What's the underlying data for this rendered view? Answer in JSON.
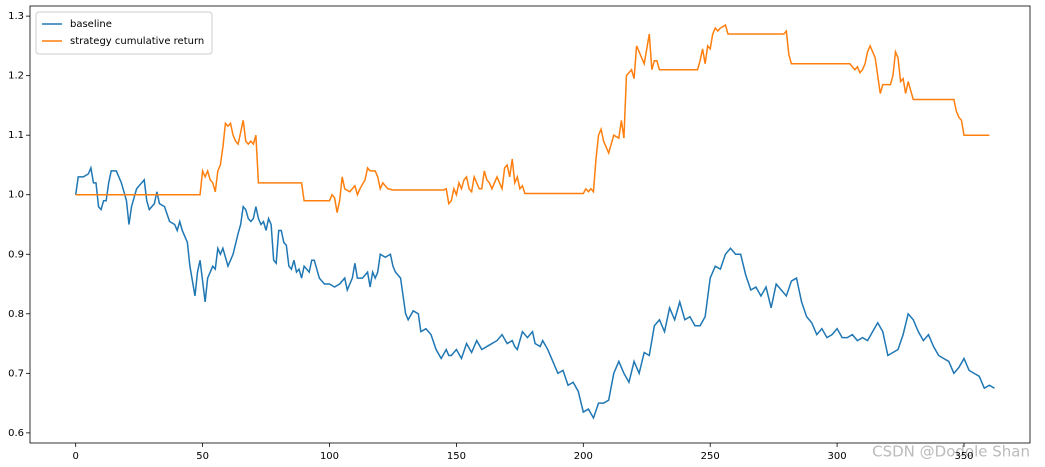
{
  "chart_data": {
    "type": "line",
    "xlim": [
      -18,
      376
    ],
    "ylim": [
      0.583,
      1.317
    ],
    "xticks": [
      0,
      50,
      100,
      150,
      200,
      250,
      300,
      350
    ],
    "yticks": [
      0.6,
      0.7,
      0.8,
      0.9,
      {
        "value": 1,
        "label": "1.0"
      },
      1.1,
      1.2,
      1.3
    ],
    "legend": "upper left",
    "watermark": "CSDN @Dodole Shan",
    "series": [
      {
        "name": "baseline",
        "color": "#1f77b4",
        "x": [
          0,
          1,
          3,
          5,
          6,
          7,
          8,
          9,
          10,
          11,
          12,
          13,
          14,
          16,
          18,
          20,
          21,
          22,
          24,
          26,
          27,
          28,
          29,
          31,
          32,
          33,
          35,
          37,
          39,
          40,
          41,
          42,
          44,
          45,
          47,
          48,
          49,
          51,
          52,
          54,
          55,
          56,
          57,
          58,
          60,
          62,
          64,
          65,
          66,
          67,
          68,
          69,
          70,
          71,
          72,
          73,
          74,
          75,
          76,
          77,
          78,
          79,
          80,
          81,
          82,
          83,
          84,
          85,
          86,
          87,
          88,
          89,
          90,
          92,
          93,
          94,
          96,
          98,
          100,
          102,
          104,
          106,
          107,
          109,
          110,
          111,
          113,
          115,
          116,
          117,
          118,
          119,
          120,
          122,
          124,
          125,
          126,
          128,
          130,
          131,
          133,
          135,
          136,
          138,
          140,
          142,
          144,
          146,
          147,
          148,
          150,
          152,
          154,
          156,
          158,
          160,
          162,
          164,
          166,
          168,
          170,
          172,
          173,
          174,
          176,
          178,
          180,
          181,
          183,
          184,
          186,
          188,
          190,
          192,
          194,
          196,
          198,
          200,
          202,
          204,
          206,
          208,
          210,
          212,
          214,
          216,
          218,
          220,
          222,
          224,
          226,
          228,
          230,
          232,
          234,
          236,
          238,
          240,
          242,
          244,
          246,
          248,
          250,
          252,
          254,
          256,
          258,
          260,
          262,
          264,
          266,
          268,
          270,
          272,
          274,
          276,
          278,
          280,
          282,
          284,
          286,
          288,
          290,
          292,
          294,
          296,
          298,
          300,
          302,
          304,
          306,
          308,
          310,
          312,
          314,
          316,
          318,
          320,
          322,
          324,
          326,
          328,
          330,
          332,
          334,
          336,
          338,
          340,
          342,
          344,
          346,
          348,
          350,
          352,
          354,
          356,
          358,
          360,
          362
        ],
        "values": [
          1.0,
          1.03,
          1.03,
          1.035,
          1.045,
          1.02,
          1.02,
          0.98,
          0.975,
          0.99,
          0.99,
          1.02,
          1.04,
          1.04,
          1.02,
          0.99,
          0.95,
          0.98,
          1.01,
          1.02,
          1.025,
          0.99,
          0.975,
          0.985,
          1.005,
          0.985,
          0.98,
          0.955,
          0.95,
          0.94,
          0.955,
          0.94,
          0.92,
          0.88,
          0.83,
          0.87,
          0.89,
          0.82,
          0.86,
          0.88,
          0.875,
          0.91,
          0.9,
          0.91,
          0.88,
          0.9,
          0.935,
          0.95,
          0.98,
          0.975,
          0.96,
          0.955,
          0.96,
          0.98,
          0.96,
          0.95,
          0.955,
          0.94,
          0.96,
          0.95,
          0.89,
          0.885,
          0.94,
          0.94,
          0.92,
          0.915,
          0.88,
          0.875,
          0.89,
          0.87,
          0.875,
          0.86,
          0.88,
          0.87,
          0.89,
          0.89,
          0.86,
          0.85,
          0.85,
          0.845,
          0.85,
          0.86,
          0.84,
          0.86,
          0.885,
          0.86,
          0.86,
          0.87,
          0.845,
          0.87,
          0.86,
          0.87,
          0.9,
          0.895,
          0.9,
          0.88,
          0.87,
          0.86,
          0.8,
          0.79,
          0.805,
          0.8,
          0.77,
          0.775,
          0.765,
          0.74,
          0.725,
          0.74,
          0.73,
          0.73,
          0.74,
          0.725,
          0.75,
          0.735,
          0.755,
          0.74,
          0.745,
          0.75,
          0.755,
          0.765,
          0.75,
          0.755,
          0.745,
          0.74,
          0.77,
          0.76,
          0.77,
          0.75,
          0.745,
          0.755,
          0.74,
          0.72,
          0.7,
          0.705,
          0.68,
          0.685,
          0.67,
          0.635,
          0.64,
          0.625,
          0.65,
          0.65,
          0.655,
          0.7,
          0.72,
          0.7,
          0.685,
          0.72,
          0.7,
          0.735,
          0.73,
          0.78,
          0.79,
          0.77,
          0.81,
          0.79,
          0.82,
          0.79,
          0.795,
          0.78,
          0.78,
          0.795,
          0.86,
          0.88,
          0.875,
          0.9,
          0.91,
          0.9,
          0.9,
          0.865,
          0.84,
          0.845,
          0.83,
          0.845,
          0.81,
          0.85,
          0.84,
          0.83,
          0.855,
          0.86,
          0.82,
          0.795,
          0.785,
          0.765,
          0.775,
          0.76,
          0.765,
          0.775,
          0.76,
          0.76,
          0.765,
          0.755,
          0.76,
          0.755,
          0.77,
          0.785,
          0.77,
          0.73,
          0.735,
          0.74,
          0.765,
          0.8,
          0.79,
          0.77,
          0.755,
          0.765,
          0.745,
          0.73,
          0.725,
          0.72,
          0.7,
          0.71,
          0.725,
          0.705,
          0.7,
          0.695,
          0.675,
          0.68,
          0.675
        ]
      },
      {
        "name": "strategy cumulative return",
        "color": "#ff7f0e",
        "x": [
          0,
          49,
          50,
          51,
          52,
          53,
          54,
          55,
          56,
          57,
          58,
          59,
          60,
          61,
          62,
          63,
          64,
          65,
          66,
          67,
          68,
          69,
          70,
          71,
          72,
          89,
          90,
          100,
          101,
          102,
          103,
          104,
          105,
          106,
          108,
          110,
          111,
          112,
          114,
          115,
          116,
          118,
          119,
          120,
          121,
          122,
          123,
          125,
          145,
          146,
          147,
          148,
          149,
          150,
          151,
          152,
          153,
          154,
          155,
          156,
          157,
          158,
          159,
          160,
          161,
          162,
          163,
          164,
          165,
          166,
          167,
          168,
          169,
          170,
          171,
          172,
          173,
          174,
          175,
          176,
          177,
          200,
          201,
          202,
          203,
          204,
          205,
          206,
          207,
          208,
          210,
          212,
          214,
          215,
          216,
          217,
          219,
          220,
          221,
          223,
          224,
          225,
          226,
          227,
          228,
          229,
          230,
          245,
          246,
          247,
          248,
          249,
          250,
          251,
          252,
          253,
          254,
          256,
          257,
          279,
          280,
          281,
          282,
          305,
          306,
          307,
          308,
          309,
          310,
          311,
          312,
          313,
          314,
          315,
          316,
          317,
          318,
          321,
          322,
          323,
          324,
          325,
          326,
          327,
          328,
          329,
          330,
          346,
          347,
          348,
          349,
          350,
          360
        ],
        "values": [
          1.0,
          1.0,
          1.04,
          1.03,
          1.04,
          1.025,
          1.02,
          1.005,
          1.04,
          1.05,
          1.08,
          1.12,
          1.115,
          1.12,
          1.1,
          1.09,
          1.085,
          1.105,
          1.125,
          1.09,
          1.085,
          1.09,
          1.085,
          1.1,
          1.02,
          1.02,
          0.99,
          0.99,
          1.0,
          0.995,
          0.97,
          0.99,
          1.03,
          1.01,
          1.005,
          1.015,
          1.0,
          1.01,
          1.025,
          1.045,
          1.04,
          1.04,
          1.03,
          1.01,
          1.02,
          1.015,
          1.01,
          1.008,
          1.008,
          1.01,
          0.985,
          0.99,
          1.01,
          1.0,
          1.02,
          1.01,
          1.025,
          1.03,
          1.01,
          1.005,
          1.03,
          1.02,
          1.01,
          1.01,
          1.04,
          1.025,
          1.02,
          1.01,
          1.02,
          1.03,
          1.02,
          1.01,
          1.045,
          1.05,
          1.03,
          1.06,
          1.02,
          1.03,
          1.01,
          1.015,
          1.002,
          1.002,
          1.01,
          1.005,
          1.01,
          1.005,
          1.06,
          1.1,
          1.11,
          1.09,
          1.07,
          1.1,
          1.095,
          1.125,
          1.095,
          1.2,
          1.21,
          1.195,
          1.25,
          1.23,
          1.22,
          1.245,
          1.27,
          1.21,
          1.225,
          1.225,
          1.21,
          1.21,
          1.225,
          1.245,
          1.22,
          1.25,
          1.245,
          1.27,
          1.28,
          1.275,
          1.28,
          1.285,
          1.27,
          1.27,
          1.275,
          1.235,
          1.22,
          1.22,
          1.215,
          1.21,
          1.215,
          1.205,
          1.21,
          1.22,
          1.24,
          1.25,
          1.24,
          1.23,
          1.2,
          1.17,
          1.185,
          1.185,
          1.2,
          1.24,
          1.23,
          1.19,
          1.195,
          1.17,
          1.19,
          1.175,
          1.16,
          1.16,
          1.14,
          1.13,
          1.125,
          1.1,
          1.1
        ]
      }
    ]
  }
}
